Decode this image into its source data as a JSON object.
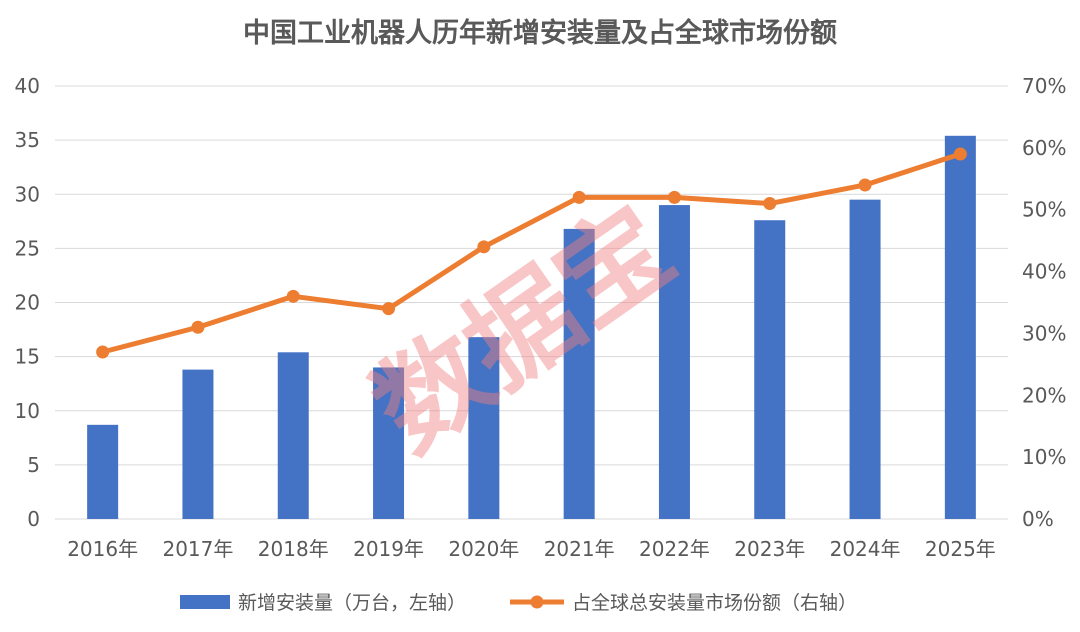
{
  "chart_data": {
    "type": "bar",
    "title": "中国工业机器人历年新增安装量及占全球市场份额",
    "categories": [
      "2016年",
      "2017年",
      "2018年",
      "2019年",
      "2020年",
      "2021年",
      "2022年",
      "2023年",
      "2024年",
      "2025年"
    ],
    "series": [
      {
        "name": "新增安装量（万台，左轴）",
        "type": "bar",
        "axis": "left",
        "color": "#4472c4",
        "values": [
          8.7,
          13.8,
          15.4,
          14.0,
          16.8,
          26.8,
          29.0,
          27.6,
          29.5,
          35.4
        ]
      },
      {
        "name": "占全球总安装量市场份额（右轴）",
        "type": "line",
        "axis": "right",
        "color": "#ed7d31",
        "values": [
          27,
          31,
          36,
          34,
          44,
          52,
          52,
          51,
          54,
          59
        ]
      }
    ],
    "y_left": {
      "min": 0,
      "max": 40,
      "ticks": [
        "0",
        "5",
        "10",
        "15",
        "20",
        "25",
        "30",
        "35",
        "40"
      ]
    },
    "y_right": {
      "min": 0,
      "max": 70,
      "ticks": [
        "0%",
        "10%",
        "20%",
        "30%",
        "40%",
        "50%",
        "60%",
        "70%"
      ]
    },
    "grid": true,
    "legend_position": "bottom",
    "watermark": "数据宝"
  }
}
